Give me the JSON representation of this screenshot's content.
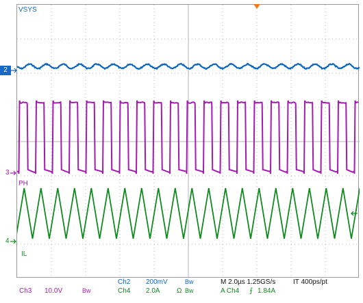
{
  "channels": {
    "ch1": {
      "name": "VSYS"
    },
    "ch2": {
      "badge": "2"
    },
    "ch3": {
      "marker": "3",
      "name": "PH"
    },
    "ch4": {
      "marker": "4",
      "name": "IL"
    }
  },
  "status_bar": {
    "ch2": {
      "label": "Ch2",
      "scale": "200mV",
      "bw": "Bw"
    },
    "ch3": {
      "label": "Ch3",
      "scale": "10.0V",
      "bw": "Bw"
    },
    "ch4": {
      "label": "Ch4",
      "scale": "2.0A",
      "ohm": "Ω",
      "bw": "Bw"
    },
    "timebase": {
      "text": "M 2.0µs 1.25GS/s",
      "record": "IT 400ps/pt"
    },
    "trigger": {
      "text": "A  Ch4",
      "slope": "⨍",
      "level": "1.84A"
    }
  },
  "colors": {
    "ch2": "#0a66c2",
    "ch3": "#a21caf",
    "ch4": "#0f8a1e",
    "trigger_marker": "#f07a1a",
    "grid": "#b4b4b4"
  },
  "icons": {
    "trigger_position": "trigger-position-icon",
    "trigger_level": "trigger-level-icon",
    "ground_marker": "ground-marker-arrow-icon"
  }
}
